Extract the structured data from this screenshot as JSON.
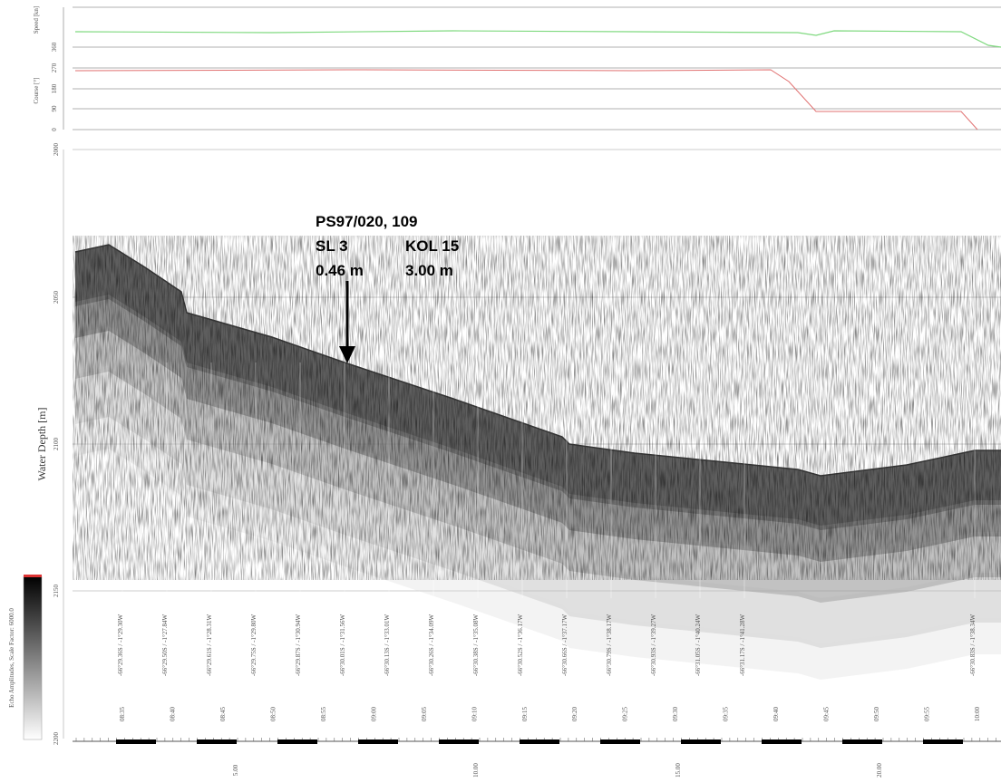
{
  "top_panel": {
    "speed_label": "Speed [kn]",
    "course_label": "Course [°]",
    "ticks": [
      "360",
      "270",
      "180",
      "90",
      "0"
    ]
  },
  "echogram": {
    "y_label": "Water Depth [m]",
    "depth_ticks": [
      "2000",
      "2050",
      "2100",
      "2150",
      "2200"
    ],
    "annotation": {
      "station": "PS97/020, 109",
      "sl": "SL 3",
      "kol": "KOL 15",
      "sl_length": "0.46 m",
      "kol_length": "3.00 m"
    },
    "positions": [
      "-66°29.36S / -1°29.30W",
      "-66°29.50S / -1°27.84W",
      "-66°29.61S / -1°28.31W",
      "-66°29.75S / -1°29.80W",
      "-66°29.87S / -1°30.94W",
      "-66°30.01S / -1°31.56W",
      "-66°30.13S / -1°33.01W",
      "-66°30.26S / -1°34.09W",
      "-66°30.38S / -1°35.08W",
      "-66°30.52S / -1°36.17W",
      "-66°30.66S / -1°37.17W",
      "-66°30.79S / -1°38.17W",
      "-66°30.93S / -1°39.27W",
      "-66°31.05S / -1°40.24W",
      "-66°31.17S / -1°41.28W",
      "-66°30.83S / -1°38.34W"
    ],
    "times": [
      "08:35",
      "08:40",
      "08:45",
      "08:50",
      "08:55",
      "09:00",
      "09:05",
      "09:10",
      "09:15",
      "09:20",
      "09:25",
      "09:30",
      "09:35",
      "09:40",
      "09:45",
      "09:50",
      "09:55",
      "10:00"
    ],
    "distances": [
      "5.00",
      "10.00",
      "15.00",
      "20.00"
    ],
    "colorbar_label": "Echo Amplitudes, Scale Factor: 6000.0"
  }
}
